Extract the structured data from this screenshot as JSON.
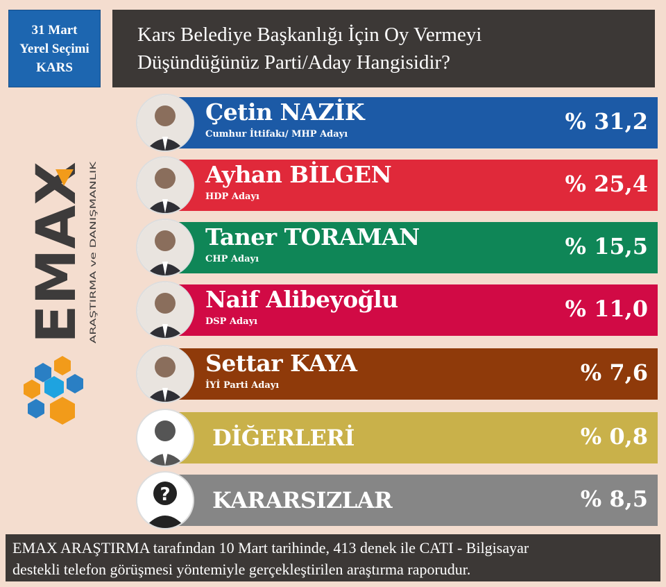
{
  "badge": {
    "line1": "31 Mart",
    "line2": "Yerel Seçimi",
    "line3": "KARS"
  },
  "title": {
    "line1": "Kars Belediye Başkanlığı İçin Oy Vermeyi",
    "line2": "Düşündüğünüz Parti/Aday Hangisidir?"
  },
  "logo": {
    "wordmark": "EMAX",
    "tagline": "ARAŞTIRMA ve DANIŞMANLIK"
  },
  "chart_data": {
    "type": "bar",
    "title": "Kars Belediye Başkanlığı İçin Oy Vermeyi Düşündüğünüz Parti/Aday Hangisidir?",
    "categories": [
      "Çetin NAZİK",
      "Ayhan BİLGEN",
      "Taner TORAMAN",
      "Naif Alibeyoğlu",
      "Settar KAYA",
      "DİĞERLERİ",
      "KARARSIZLAR"
    ],
    "subtitles": [
      "Cumhur İttifakı/ MHP Adayı",
      "HDP Adayı",
      "CHP Adayı",
      "DSP Adayı",
      "İYİ Parti Adayı",
      "",
      ""
    ],
    "values": [
      31.2,
      25.4,
      15.5,
      11.0,
      7.6,
      0.8,
      8.5
    ],
    "labels": [
      "% 31,2",
      "% 25,4",
      "% 15,5",
      "% 11,0",
      "% 7,6",
      "% 0,8",
      "% 8,5"
    ],
    "colors": [
      "#1c5aa6",
      "#e0293a",
      "#0f8657",
      "#d10a45",
      "#8f3a0a",
      "#c9b14a",
      "#868686"
    ]
  },
  "footer": {
    "line1": "EMAX ARAŞTIRMA tarafından 10 Mart tarihinde, 413 denek ile CATI - Bilgisayar",
    "line2": "destekli telefon görüşmesi yöntemiyle gerçekleştirilen araştırma raporudur."
  }
}
